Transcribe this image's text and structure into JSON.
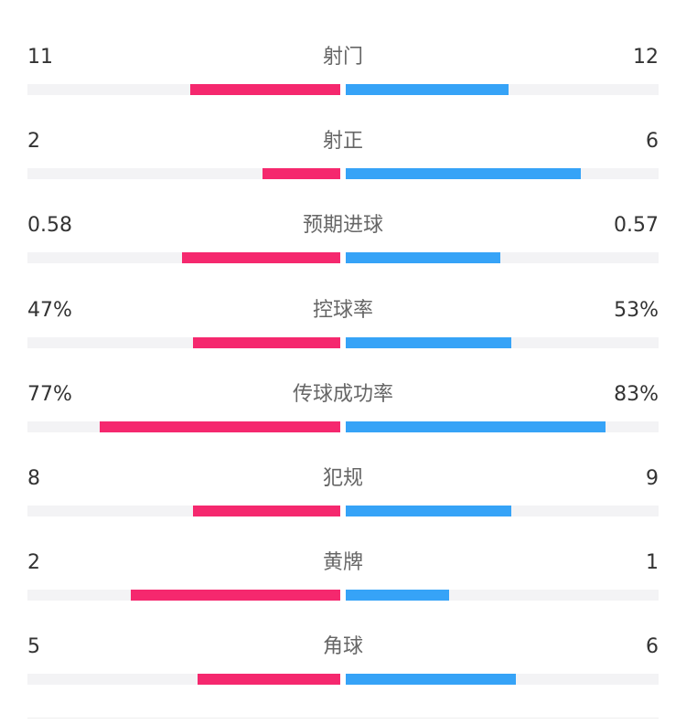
{
  "chart_data": {
    "type": "bar",
    "colors": {
      "left": "#f5286e",
      "right": "#36a3f7",
      "track": "#f3f3f5"
    },
    "rows": [
      {
        "label": "射门",
        "left": "11",
        "right": "12",
        "left_share": 0.48,
        "right_share": 0.52
      },
      {
        "label": "射正",
        "left": "2",
        "right": "6",
        "left_share": 0.25,
        "right_share": 0.75
      },
      {
        "label": "预期进球",
        "left": "0.58",
        "right": "0.57",
        "left_share": 0.505,
        "right_share": 0.495
      },
      {
        "label": "控球率",
        "left": "47%",
        "right": "53%",
        "left_share": 0.47,
        "right_share": 0.53
      },
      {
        "label": "传球成功率",
        "left": "77%",
        "right": "83%",
        "left_share": 0.77,
        "right_share": 0.83
      },
      {
        "label": "犯规",
        "left": "8",
        "right": "9",
        "left_share": 0.47,
        "right_share": 0.53
      },
      {
        "label": "黄牌",
        "left": "2",
        "right": "1",
        "left_share": 0.67,
        "right_share": 0.33
      },
      {
        "label": "角球",
        "left": "5",
        "right": "6",
        "left_share": 0.455,
        "right_share": 0.545
      }
    ]
  }
}
